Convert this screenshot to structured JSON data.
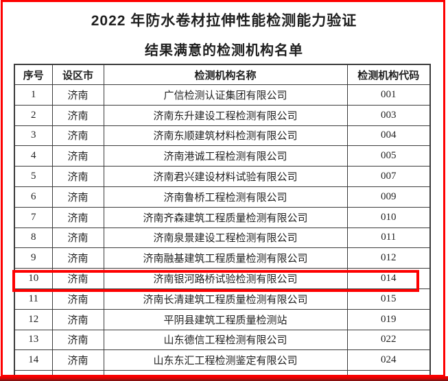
{
  "page": {
    "title": "2022 年防水卷材拉伸性能检测能力验证",
    "subtitle": "结果满意的检测机构名单"
  },
  "table": {
    "columns": [
      "序号",
      "设区市",
      "检测机构名称",
      "检测机构代码"
    ],
    "rows": [
      {
        "no": "1",
        "city": "济南",
        "name": "广信检测认证集团有限公司",
        "code": "001",
        "highlighted": false
      },
      {
        "no": "2",
        "city": "济南",
        "name": "济南东升建设工程检测有限公司",
        "code": "003",
        "highlighted": false
      },
      {
        "no": "3",
        "city": "济南",
        "name": "济南东顺建筑材料检测有限公司",
        "code": "004",
        "highlighted": false
      },
      {
        "no": "4",
        "city": "济南",
        "name": "济南港诚工程检测有限公司",
        "code": "005",
        "highlighted": false
      },
      {
        "no": "5",
        "city": "济南",
        "name": "济南君兴建设材料试验有限公司",
        "code": "007",
        "highlighted": false
      },
      {
        "no": "6",
        "city": "济南",
        "name": "济南鲁桥工程检测有限公司",
        "code": "009",
        "highlighted": false
      },
      {
        "no": "7",
        "city": "济南",
        "name": "济南齐森建筑工程质量检测有限公司",
        "code": "010",
        "highlighted": false
      },
      {
        "no": "8",
        "city": "济南",
        "name": "济南泉景建设工程检测有限公司",
        "code": "011",
        "highlighted": false
      },
      {
        "no": "9",
        "city": "济南",
        "name": "济南融基建筑工程质量检测有限公司",
        "code": "012",
        "highlighted": false
      },
      {
        "no": "10",
        "city": "济南",
        "name": "济南银河路桥试验检测有限公司",
        "code": "014",
        "highlighted": true
      },
      {
        "no": "11",
        "city": "济南",
        "name": "济南长清建筑工程质量检测有限公司",
        "code": "015",
        "highlighted": false
      },
      {
        "no": "12",
        "city": "济南",
        "name": "平阴县建筑工程质量检测站",
        "code": "019",
        "highlighted": false
      },
      {
        "no": "13",
        "city": "济南",
        "name": "山东德信工程检测有限公司",
        "code": "022",
        "highlighted": false
      },
      {
        "no": "14",
        "city": "济南",
        "name": "山东东汇工程检测鉴定有限公司",
        "code": "024",
        "highlighted": false
      }
    ]
  },
  "colors": {
    "frame_red": "#fe0000",
    "highlight_red": "#fe0000",
    "table_border": "#3a3a3a",
    "text": "#1f1f1f"
  }
}
